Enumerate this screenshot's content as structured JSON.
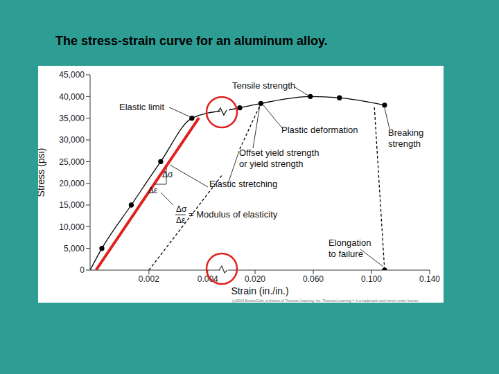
{
  "title": "The stress-strain curve for an aluminum alloy.",
  "credit": "(c)2003 Brooks/Cole, a division of Thomson Learning, Inc.  Thomson Learning™ is a trademark used herein under license.",
  "annotations": {
    "tensile": "Tensile strength",
    "elastic_limit": "Elastic limit",
    "plastic": "Plastic deformation",
    "breaking": "Breaking\nstrength",
    "offset": "Offset yield strength\nor yield strength",
    "stretching": "Elastic stretching",
    "dsigma": "Δσ",
    "deps": "Δε",
    "modulus_fraction": [
      "Δσ",
      "Δε"
    ],
    "modulus_text": "= Modulus of elasticity",
    "elongation": "Elongation\nto failure"
  },
  "chart_data": [
    {
      "type": "line",
      "y_label": "Stress (psi)",
      "xlim": [
        0,
        0.0045
      ],
      "xticks": [
        0.002,
        0.004
      ],
      "ylim": [
        0,
        45000
      ],
      "yticks": [
        0,
        {
          "value": 5000,
          "label": "5,000"
        },
        {
          "value": 10000,
          "label": "10,000"
        },
        {
          "value": 15000,
          "label": "15,000"
        },
        {
          "value": 20000,
          "label": "20,000"
        },
        {
          "value": 25000,
          "label": "25,000"
        },
        {
          "value": 30000,
          "label": "30,000"
        },
        {
          "value": 35000,
          "label": "35,000"
        },
        {
          "value": 40000,
          "label": "40,000"
        },
        {
          "value": 45000,
          "label": "45,000"
        }
      ],
      "series": [
        {
          "color": "#000000",
          "marker": "none",
          "line_style": "solid",
          "x": [
            0,
            0.0004,
            0.0014,
            0.0024,
            0.00346,
            0.0045
          ],
          "values": [
            0,
            5000,
            15000,
            25000,
            35000,
            36700
          ]
        },
        {
          "color": "#000000",
          "marker": "circle",
          "line_style": "none",
          "x": [
            0.0004,
            0.0014,
            0.0024,
            0.00346
          ],
          "values": [
            5000,
            15000,
            25000,
            35000
          ]
        },
        {
          "color": "#000000",
          "marker": "none",
          "line_style": "dashed",
          "x": [
            0.002,
            0.0045
          ],
          "values": [
            0,
            22000
          ]
        },
        {
          "color": "#e0201f",
          "marker": "none",
          "line_style": "solid",
          "x": [
            0.0002,
            0.0037
          ],
          "values": [
            0,
            35100
          ]
        }
      ]
    },
    {
      "type": "line",
      "x_label": "Strain (in./in.)",
      "tick_labels": "x",
      "xlim": [
        0,
        0.14
      ],
      "xticks": [
        {
          "value": 0.02,
          "label": "0.020"
        },
        {
          "value": 0.06,
          "label": "0.060"
        },
        {
          "value": 0.1,
          "label": "0.100"
        },
        {
          "value": 0.14,
          "label": "0.140"
        }
      ],
      "ylim": [
        0,
        45000
      ],
      "series": [
        {
          "color": "#000000",
          "marker": "none",
          "line_style": "solid",
          "x": [
            0.002,
            0.0095,
            0.024,
            0.058,
            0.078,
            0.109
          ],
          "values": [
            36900,
            37400,
            38400,
            40000,
            39700,
            38000
          ]
        },
        {
          "color": "#000000",
          "marker": "circle",
          "line_style": "none",
          "x": [
            0.0095,
            0.024,
            0.058,
            0.078,
            0.109,
            0.109
          ],
          "values": [
            37400,
            38400,
            40000,
            39700,
            38000,
            0
          ]
        },
        {
          "color": "#000000",
          "marker": "none",
          "line_style": "dashed",
          "x": [
            0.0095,
            0.024
          ],
          "values": [
            27900,
            38400
          ]
        },
        {
          "color": "#000000",
          "marker": "none",
          "line_style": "dashed",
          "x": [
            0.102,
            0.109
          ],
          "values": [
            37500,
            0
          ]
        }
      ]
    }
  ]
}
